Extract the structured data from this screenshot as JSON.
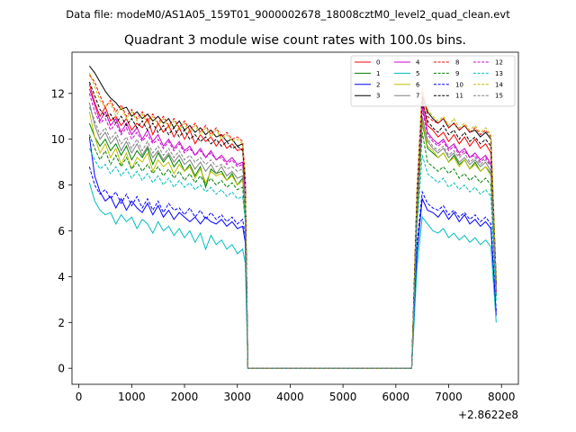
{
  "figure": {
    "suptitle": "Data file: modeM0/AS1A05_159T01_9000002678_18008cztM0_level2_quad_clean.evt"
  },
  "chart_data": {
    "type": "line",
    "title": "Quadrant 3 module wise count rates with 100.0s bins.",
    "xlabel": "",
    "ylabel": "",
    "x_offset_label": "+2.8622e8",
    "xlim": [
      -130,
      8320
    ],
    "ylim": [
      -0.7,
      13.8
    ],
    "xticks": [
      0,
      1000,
      2000,
      3000,
      4000,
      5000,
      6000,
      7000,
      8000
    ],
    "xtick_labels": [
      "0",
      "1000",
      "2000",
      "3000",
      "4000",
      "5000",
      "6000",
      "7000",
      "8000"
    ],
    "yticks": [
      0,
      2,
      4,
      6,
      8,
      10,
      12
    ],
    "ytick_labels": [
      "0",
      "2",
      "4",
      "6",
      "8",
      "10",
      "12"
    ],
    "legend_position": "top-right",
    "x": [
      200,
      300,
      400,
      500,
      600,
      700,
      800,
      900,
      1000,
      1100,
      1200,
      1300,
      1400,
      1500,
      1600,
      1700,
      1800,
      1900,
      2000,
      2100,
      2200,
      2300,
      2400,
      2500,
      2600,
      2700,
      2800,
      2900,
      3000,
      3100,
      3150,
      3200,
      3300,
      6300,
      6400,
      6500,
      6600,
      6700,
      6800,
      6900,
      7000,
      7100,
      7200,
      7300,
      7400,
      7500,
      7600,
      7700,
      7800,
      7900
    ],
    "series": [
      {
        "name": "0",
        "color": "#ff0000",
        "dash": "solid",
        "values": [
          12.4,
          11.6,
          11.0,
          11.4,
          10.8,
          11.0,
          10.6,
          10.9,
          10.4,
          10.7,
          10.5,
          10.9,
          10.2,
          10.7,
          10.3,
          10.6,
          10.1,
          10.5,
          10.0,
          10.4,
          9.8,
          10.2,
          9.9,
          10.1,
          9.7,
          10.0,
          9.6,
          9.8,
          9.5,
          9.6,
          8.0,
          0.0,
          0.0,
          0.0,
          7.4,
          11.8,
          10.6,
          10.4,
          10.1,
          10.3,
          9.9,
          10.2,
          9.8,
          10.1,
          9.7,
          10.0,
          9.6,
          9.8,
          9.4,
          3.6
        ]
      },
      {
        "name": "1",
        "color": "#008000",
        "dash": "solid",
        "values": [
          10.7,
          10.1,
          9.7,
          10.0,
          9.5,
          9.8,
          9.3,
          9.7,
          9.1,
          9.5,
          9.2,
          9.6,
          8.9,
          9.4,
          9.0,
          9.3,
          8.8,
          9.1,
          8.6,
          8.9,
          8.4,
          8.8,
          7.9,
          8.7,
          8.5,
          8.6,
          8.2,
          8.5,
          8.0,
          8.3,
          6.8,
          0.0,
          0.0,
          0.0,
          6.7,
          10.7,
          9.6,
          9.4,
          9.2,
          9.4,
          9.0,
          9.3,
          8.9,
          9.1,
          8.7,
          9.0,
          8.6,
          8.8,
          8.5,
          3.2
        ]
      },
      {
        "name": "2",
        "color": "#0000ff",
        "dash": "solid",
        "values": [
          10.1,
          8.4,
          7.7,
          7.3,
          7.5,
          7.0,
          7.4,
          6.9,
          7.3,
          7.0,
          6.8,
          7.2,
          6.7,
          7.1,
          6.6,
          6.9,
          6.5,
          6.8,
          6.6,
          6.4,
          6.6,
          6.3,
          6.6,
          6.4,
          6.3,
          6.5,
          6.2,
          6.4,
          6.1,
          6.2,
          5.5,
          0.0,
          0.0,
          0.0,
          5.0,
          7.4,
          6.9,
          6.8,
          6.6,
          6.9,
          6.5,
          6.8,
          6.4,
          6.7,
          6.3,
          6.5,
          6.2,
          6.4,
          6.1,
          2.3
        ]
      },
      {
        "name": "3",
        "color": "#000000",
        "dash": "solid",
        "values": [
          13.2,
          12.9,
          12.5,
          12.1,
          11.8,
          11.6,
          11.3,
          11.4,
          11.0,
          11.2,
          10.9,
          11.1,
          10.8,
          11.0,
          10.7,
          10.9,
          10.5,
          10.8,
          10.4,
          10.6,
          10.3,
          10.5,
          10.2,
          10.4,
          10.1,
          10.2,
          9.9,
          10.0,
          9.7,
          9.8,
          8.2,
          0.0,
          0.0,
          0.0,
          7.6,
          11.9,
          11.2,
          10.9,
          10.7,
          10.9,
          10.5,
          10.7,
          10.4,
          10.6,
          10.3,
          10.4,
          10.1,
          10.3,
          10.0,
          3.8
        ]
      },
      {
        "name": "4",
        "color": "#cc00cc",
        "dash": "solid",
        "values": [
          12.2,
          11.5,
          10.8,
          11.2,
          10.6,
          10.9,
          10.3,
          10.7,
          10.2,
          10.5,
          10.0,
          10.4,
          9.9,
          10.2,
          9.7,
          10.0,
          9.6,
          9.9,
          9.5,
          9.7,
          9.3,
          9.6,
          9.2,
          9.5,
          9.1,
          9.3,
          9.0,
          9.2,
          8.9,
          9.0,
          7.6,
          0.0,
          0.0,
          0.0,
          7.2,
          11.5,
          10.3,
          10.0,
          9.8,
          10.0,
          9.6,
          9.8,
          9.4,
          9.6,
          9.2,
          9.4,
          9.1,
          9.3,
          8.9,
          3.4
        ]
      },
      {
        "name": "5",
        "color": "#00bfbf",
        "dash": "solid",
        "values": [
          8.1,
          7.3,
          6.9,
          6.7,
          6.8,
          6.3,
          6.7,
          6.4,
          6.6,
          6.1,
          6.5,
          6.3,
          5.9,
          6.4,
          6.0,
          6.2,
          5.8,
          6.1,
          5.7,
          6.0,
          5.5,
          5.9,
          5.2,
          5.8,
          5.4,
          5.6,
          5.2,
          5.4,
          5.0,
          5.2,
          4.6,
          0.0,
          0.0,
          0.0,
          4.4,
          6.6,
          6.3,
          6.0,
          5.9,
          6.1,
          5.7,
          5.9,
          5.6,
          5.8,
          5.5,
          5.7,
          5.4,
          5.6,
          5.3,
          2.0
        ]
      },
      {
        "name": "6",
        "color": "#bfbf00",
        "dash": "solid",
        "values": [
          11.2,
          10.1,
          9.4,
          9.8,
          9.2,
          9.6,
          8.9,
          9.4,
          8.7,
          9.2,
          9.0,
          9.4,
          8.6,
          9.1,
          8.8,
          9.0,
          8.5,
          8.9,
          8.6,
          8.8,
          8.3,
          8.7,
          8.1,
          8.6,
          8.4,
          8.5,
          8.2,
          8.4,
          8.0,
          8.2,
          6.9,
          0.0,
          0.0,
          0.0,
          6.5,
          10.8,
          9.7,
          9.5,
          9.2,
          9.4,
          9.0,
          9.2,
          8.8,
          9.1,
          8.7,
          8.9,
          8.6,
          8.8,
          8.4,
          3.3
        ]
      },
      {
        "name": "7",
        "color": "#808080",
        "dash": "solid",
        "values": [
          11.6,
          10.6,
          10.0,
          10.3,
          9.8,
          10.1,
          9.5,
          9.9,
          9.4,
          9.8,
          9.3,
          9.7,
          9.2,
          9.5,
          9.1,
          9.4,
          9.0,
          9.3,
          8.9,
          9.1,
          8.7,
          9.0,
          8.6,
          8.9,
          8.5,
          8.8,
          8.4,
          8.6,
          8.3,
          8.4,
          7.1,
          0.0,
          0.0,
          0.0,
          6.8,
          11.0,
          9.9,
          9.6,
          9.4,
          9.6,
          9.2,
          9.4,
          9.0,
          9.2,
          8.9,
          9.1,
          8.8,
          9.0,
          8.6,
          3.4
        ]
      },
      {
        "name": "8",
        "color": "#ff0000",
        "dash": "dashed",
        "values": [
          12.8,
          12.5,
          11.9,
          11.4,
          11.7,
          11.2,
          11.5,
          11.0,
          11.3,
          10.9,
          11.2,
          10.8,
          11.1,
          10.7,
          11.0,
          10.6,
          10.9,
          10.5,
          10.8,
          10.4,
          10.7,
          10.3,
          10.6,
          10.2,
          10.5,
          10.1,
          10.3,
          10.0,
          10.1,
          9.9,
          8.4,
          0.0,
          0.0,
          0.0,
          7.8,
          12.2,
          11.0,
          10.8,
          10.7,
          10.9,
          10.5,
          10.7,
          10.4,
          10.6,
          10.3,
          10.5,
          10.2,
          10.4,
          10.1,
          3.9
        ]
      },
      {
        "name": "9",
        "color": "#008000",
        "dash": "dashed",
        "values": [
          10.2,
          9.6,
          9.1,
          9.5,
          8.9,
          9.3,
          8.8,
          9.2,
          8.7,
          9.0,
          8.6,
          8.9,
          8.5,
          8.8,
          8.4,
          8.7,
          8.3,
          8.6,
          8.2,
          8.5,
          8.1,
          8.4,
          8.0,
          8.3,
          8.0,
          8.2,
          7.9,
          8.1,
          7.8,
          7.9,
          6.6,
          0.0,
          0.0,
          0.0,
          6.4,
          10.3,
          9.0,
          8.8,
          8.6,
          8.8,
          8.5,
          8.7,
          8.3,
          8.5,
          8.2,
          8.4,
          8.1,
          8.3,
          8.0,
          3.1
        ]
      },
      {
        "name": "10",
        "color": "#0000ff",
        "dash": "dashed",
        "values": [
          8.8,
          8.0,
          7.6,
          7.8,
          7.4,
          7.7,
          7.2,
          7.6,
          7.1,
          7.5,
          7.0,
          7.4,
          6.9,
          7.3,
          6.8,
          7.2,
          6.9,
          7.0,
          6.7,
          7.0,
          6.6,
          6.9,
          6.5,
          6.8,
          6.5,
          6.7,
          6.4,
          6.6,
          6.3,
          6.5,
          5.8,
          0.0,
          0.0,
          0.0,
          5.4,
          7.7,
          7.2,
          7.0,
          6.9,
          7.1,
          6.7,
          6.9,
          6.6,
          6.8,
          6.5,
          6.7,
          6.4,
          6.6,
          6.3,
          2.5
        ]
      },
      {
        "name": "11",
        "color": "#000000",
        "dash": "dashed",
        "values": [
          12.5,
          11.9,
          11.3,
          11.0,
          11.1,
          10.7,
          11.0,
          10.6,
          10.9,
          10.5,
          10.8,
          10.4,
          10.7,
          10.3,
          10.6,
          10.2,
          10.5,
          10.1,
          10.4,
          10.0,
          10.2,
          9.9,
          10.1,
          9.8,
          10.0,
          9.7,
          9.9,
          9.6,
          9.7,
          9.5,
          8.1,
          0.0,
          0.0,
          0.0,
          7.5,
          11.6,
          10.8,
          10.5,
          10.3,
          10.6,
          10.2,
          10.4,
          10.0,
          10.3,
          9.9,
          10.1,
          9.8,
          10.0,
          9.7,
          3.7
        ]
      },
      {
        "name": "12",
        "color": "#cc00cc",
        "dash": "dashed",
        "values": [
          12.0,
          11.2,
          10.7,
          10.9,
          10.4,
          10.7,
          10.2,
          10.5,
          10.0,
          10.3,
          9.9,
          10.2,
          9.8,
          10.0,
          9.6,
          9.9,
          9.5,
          9.8,
          9.4,
          9.6,
          9.3,
          9.5,
          9.2,
          9.4,
          9.1,
          9.2,
          8.9,
          9.1,
          8.8,
          8.9,
          7.5,
          0.0,
          0.0,
          0.0,
          7.1,
          11.3,
          10.2,
          9.9,
          9.7,
          9.9,
          9.5,
          9.7,
          9.3,
          9.5,
          9.2,
          9.3,
          9.0,
          9.2,
          8.8,
          3.3
        ]
      },
      {
        "name": "13",
        "color": "#00bfbf",
        "dash": "dashed",
        "values": [
          9.6,
          9.1,
          8.7,
          8.9,
          8.5,
          8.8,
          8.4,
          8.7,
          8.3,
          8.6,
          8.2,
          8.5,
          8.1,
          8.4,
          8.0,
          8.3,
          7.9,
          8.2,
          7.9,
          8.1,
          7.8,
          8.0,
          7.7,
          7.9,
          7.6,
          7.8,
          7.5,
          7.7,
          7.4,
          7.5,
          6.4,
          0.0,
          0.0,
          0.0,
          6.2,
          9.3,
          8.5,
          8.3,
          8.1,
          8.3,
          7.9,
          8.1,
          7.8,
          8.0,
          7.7,
          7.9,
          7.6,
          7.8,
          7.5,
          2.9
        ]
      },
      {
        "name": "14",
        "color": "#bfbf00",
        "dash": "dashed",
        "values": [
          12.9,
          12.3,
          11.7,
          11.4,
          11.6,
          11.0,
          11.4,
          10.9,
          11.2,
          10.8,
          11.1,
          10.7,
          11.0,
          10.6,
          10.9,
          10.5,
          10.8,
          10.4,
          10.7,
          10.3,
          10.6,
          10.2,
          10.5,
          10.1,
          10.4,
          10.0,
          10.2,
          9.9,
          10.0,
          9.8,
          8.3,
          0.0,
          0.0,
          0.0,
          7.7,
          12.1,
          11.3,
          11.0,
          10.8,
          11.0,
          10.6,
          10.9,
          10.5,
          10.7,
          10.4,
          10.6,
          10.3,
          10.5,
          10.2,
          3.8
        ]
      },
      {
        "name": "15",
        "color": "#808080",
        "dash": "dashed",
        "values": [
          11.4,
          10.8,
          10.2,
          10.5,
          10.0,
          10.3,
          9.8,
          10.1,
          9.6,
          10.0,
          9.5,
          9.9,
          9.4,
          9.7,
          9.3,
          9.6,
          9.2,
          9.5,
          9.1,
          9.3,
          9.0,
          9.2,
          8.9,
          9.1,
          8.8,
          8.9,
          8.7,
          8.8,
          8.6,
          8.7,
          7.3,
          0.0,
          0.0,
          0.0,
          6.9,
          10.9,
          10.0,
          9.7,
          9.5,
          9.7,
          9.3,
          9.5,
          9.2,
          9.4,
          9.0,
          9.2,
          8.9,
          9.1,
          8.8,
          3.5
        ]
      }
    ]
  }
}
